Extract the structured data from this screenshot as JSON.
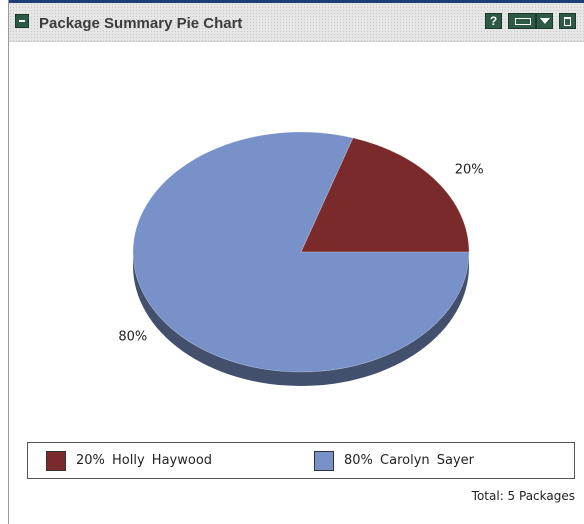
{
  "portlet": {
    "title": "Package Summary Pie Chart",
    "controls": {
      "help_label": "?",
      "icons": [
        "collapse-icon",
        "help-icon",
        "edit-icon",
        "menu-chevron-icon",
        "maximize-icon"
      ]
    },
    "colors": {
      "title_bar_accent": "#1d3e78",
      "control_bg": "#2d5a45"
    }
  },
  "chart_data": {
    "type": "pie",
    "title": "",
    "categories": [
      "Holly Haywood",
      "Carolyn Sayer"
    ],
    "values": [
      20,
      80
    ],
    "labels": [
      "20%",
      "80%"
    ],
    "colors": [
      "#7a2a2a",
      "#7891c8"
    ],
    "legend_placement": "bottom"
  },
  "legend": {
    "items": [
      {
        "text": "20%  Holly Haywood",
        "color": "#7a2a2a"
      },
      {
        "text": "80%  Carolyn Sayer",
        "color": "#7891c8"
      }
    ]
  },
  "footer": {
    "total": "Total: 5 Packages"
  }
}
